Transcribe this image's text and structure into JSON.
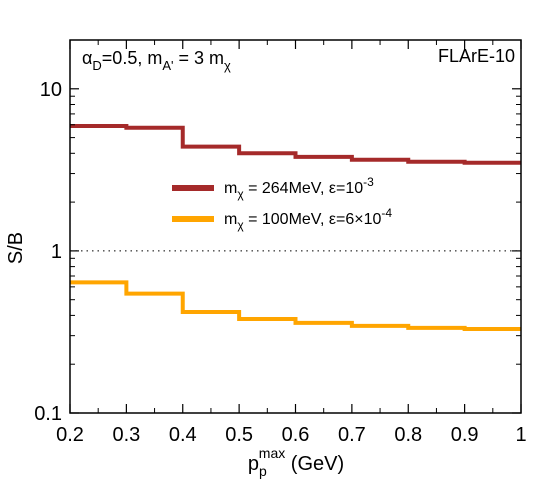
{
  "chart_data": {
    "type": "line",
    "step": true,
    "title_left": {
      "main": "α",
      "sub1": "D",
      "rest1": "=0.5, m",
      "sub2": "A'",
      "rest2": " = 3 m",
      "sub3": "χ"
    },
    "title_right": "FLArE-10",
    "xlabel": {
      "main": "p",
      "sub": "p",
      "sup": "max",
      "rest": "  (GeV)"
    },
    "ylabel": "S/B",
    "xlim": [
      0.2,
      1.0
    ],
    "ylim": [
      0.1,
      20
    ],
    "yscale": "log",
    "xticks": [
      0.2,
      0.3,
      0.4,
      0.5,
      0.6,
      0.7,
      0.8,
      0.9,
      1.0
    ],
    "xtick_labels": [
      "0.2",
      "0.3",
      "0.4",
      "0.5",
      "0.6",
      "0.7",
      "0.8",
      "0.9",
      "1"
    ],
    "yticks": [
      0.1,
      1,
      10
    ],
    "ytick_labels": [
      "0.1",
      "1",
      "10"
    ],
    "reference_line": {
      "y": 1,
      "style": "dotted"
    },
    "legend_position": "center",
    "bin_edges": [
      0.2,
      0.3,
      0.4,
      0.5,
      0.6,
      0.7,
      0.8,
      0.9,
      1.0
    ],
    "series": [
      {
        "legend": {
          "main": "m",
          "sub": "χ",
          "mid": " = 264MeV, ε=10",
          "sup": "-3",
          "tail": ""
        },
        "color": "#a52a2a",
        "values": [
          5.9,
          5.75,
          4.4,
          4.0,
          3.8,
          3.65,
          3.55,
          3.5
        ]
      },
      {
        "legend": {
          "main": "m",
          "sub": "χ",
          "mid": " = 100MeV, ε=6×10",
          "sup": "-4",
          "tail": ""
        },
        "color": "#ffa500",
        "values": [
          0.64,
          0.545,
          0.42,
          0.38,
          0.36,
          0.345,
          0.335,
          0.33
        ]
      }
    ]
  }
}
